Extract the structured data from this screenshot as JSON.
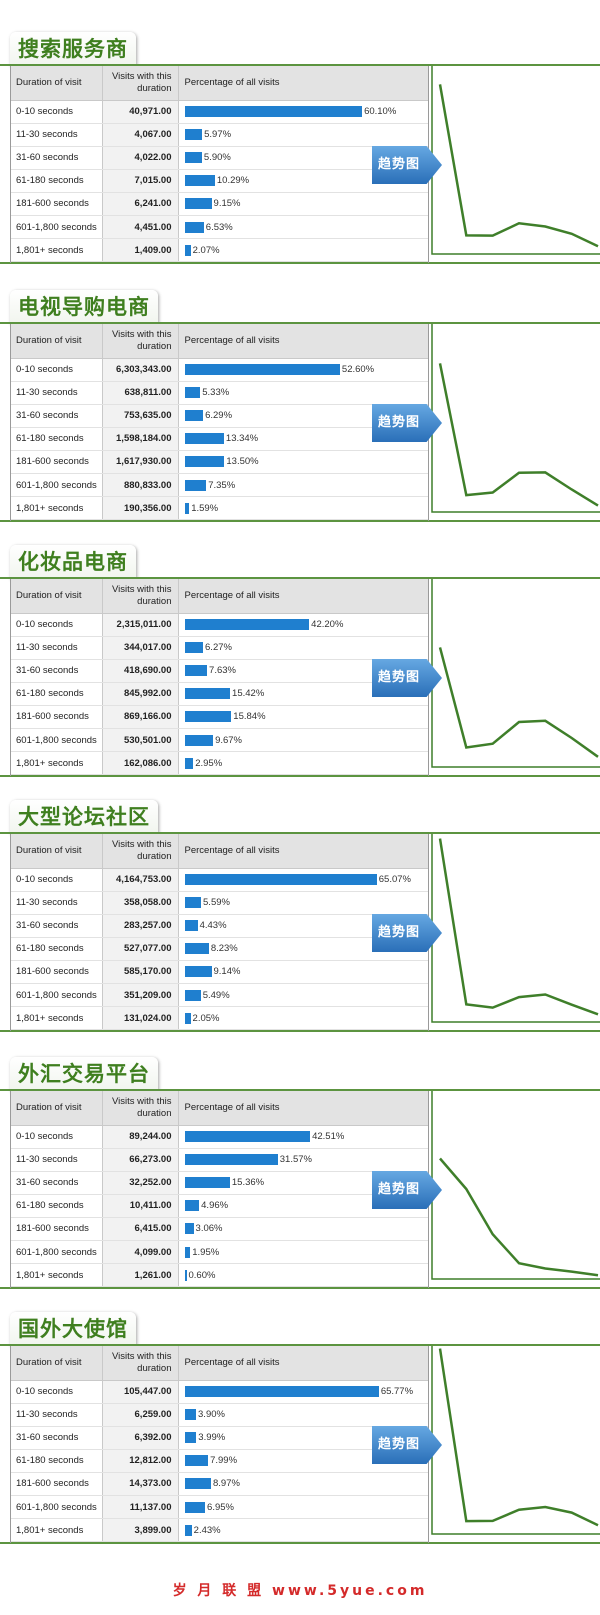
{
  "trend_button_label": "趋势图",
  "headers": {
    "duration": "Duration of visit",
    "visits_line1": "Visits with this",
    "visits_line2": "duration",
    "percentage": "Percentage of all visits"
  },
  "footer": "岁 月 联 盟   www.5yue.com",
  "chart_data": [
    {
      "type": "bar",
      "title": "搜索服务商",
      "categories": [
        "0-10 seconds",
        "11-30 seconds",
        "31-60 seconds",
        "61-180 seconds",
        "181-600 seconds",
        "601-1,800 seconds",
        "1,801+ seconds"
      ],
      "visits": [
        "40,971.00",
        "4,067.00",
        "4,022.00",
        "7,015.00",
        "6,241.00",
        "4,451.00",
        "1,409.00"
      ],
      "percent_labels": [
        "60.10%",
        "5.97%",
        "5.90%",
        "10.29%",
        "9.15%",
        "6.53%",
        "2.07%"
      ],
      "values": [
        60.1,
        5.97,
        5.9,
        10.29,
        9.15,
        6.53,
        2.07
      ]
    },
    {
      "type": "bar",
      "title": "电视导购电商",
      "categories": [
        "0-10 seconds",
        "11-30 seconds",
        "31-60 seconds",
        "61-180 seconds",
        "181-600 seconds",
        "601-1,800 seconds",
        "1,801+ seconds"
      ],
      "visits": [
        "6,303,343.00",
        "638,811.00",
        "753,635.00",
        "1,598,184.00",
        "1,617,930.00",
        "880,833.00",
        "190,356.00"
      ],
      "percent_labels": [
        "52.60%",
        "5.33%",
        "6.29%",
        "13.34%",
        "13.50%",
        "7.35%",
        "1.59%"
      ],
      "values": [
        52.6,
        5.33,
        6.29,
        13.34,
        13.5,
        7.35,
        1.59
      ]
    },
    {
      "type": "bar",
      "title": "化妆品电商",
      "categories": [
        "0-10 seconds",
        "11-30 seconds",
        "31-60 seconds",
        "61-180 seconds",
        "181-600 seconds",
        "601-1,800 seconds",
        "1,801+ seconds"
      ],
      "visits": [
        "2,315,011.00",
        "344,017.00",
        "418,690.00",
        "845,992.00",
        "869,166.00",
        "530,501.00",
        "162,086.00"
      ],
      "percent_labels": [
        "42.20%",
        "6.27%",
        "7.63%",
        "15.42%",
        "15.84%",
        "9.67%",
        "2.95%"
      ],
      "values": [
        42.2,
        6.27,
        7.63,
        15.42,
        15.84,
        9.67,
        2.95
      ]
    },
    {
      "type": "bar",
      "title": "大型论坛社区",
      "categories": [
        "0-10 seconds",
        "11-30 seconds",
        "31-60 seconds",
        "61-180 seconds",
        "181-600 seconds",
        "601-1,800 seconds",
        "1,801+ seconds"
      ],
      "visits": [
        "4,164,753.00",
        "358,058.00",
        "283,257.00",
        "527,077.00",
        "585,170.00",
        "351,209.00",
        "131,024.00"
      ],
      "percent_labels": [
        "65.07%",
        "5.59%",
        "4.43%",
        "8.23%",
        "9.14%",
        "5.49%",
        "2.05%"
      ],
      "values": [
        65.07,
        5.59,
        4.43,
        8.23,
        9.14,
        5.49,
        2.05
      ]
    },
    {
      "type": "bar",
      "title": "外汇交易平台",
      "categories": [
        "0-10 seconds",
        "11-30 seconds",
        "31-60 seconds",
        "61-180 seconds",
        "181-600 seconds",
        "601-1,800 seconds",
        "1,801+ seconds"
      ],
      "visits": [
        "89,244.00",
        "66,273.00",
        "32,252.00",
        "10,411.00",
        "6,415.00",
        "4,099.00",
        "1,261.00"
      ],
      "percent_labels": [
        "42.51%",
        "31.57%",
        "15.36%",
        "4.96%",
        "3.06%",
        "1.95%",
        "0.60%"
      ],
      "values": [
        42.51,
        31.57,
        15.36,
        4.96,
        3.06,
        1.95,
        0.6
      ]
    },
    {
      "type": "bar",
      "title": "国外大使馆",
      "categories": [
        "0-10 seconds",
        "11-30 seconds",
        "31-60 seconds",
        "61-180 seconds",
        "181-600 seconds",
        "601-1,800 seconds",
        "1,801+ seconds"
      ],
      "visits": [
        "105,447.00",
        "6,259.00",
        "6,392.00",
        "12,812.00",
        "14,373.00",
        "11,137.00",
        "3,899.00"
      ],
      "percent_labels": [
        "65.77%",
        "3.90%",
        "3.99%",
        "7.99%",
        "8.97%",
        "6.95%",
        "2.43%"
      ],
      "values": [
        65.77,
        3.9,
        3.99,
        7.99,
        8.97,
        6.95,
        2.43
      ]
    }
  ]
}
